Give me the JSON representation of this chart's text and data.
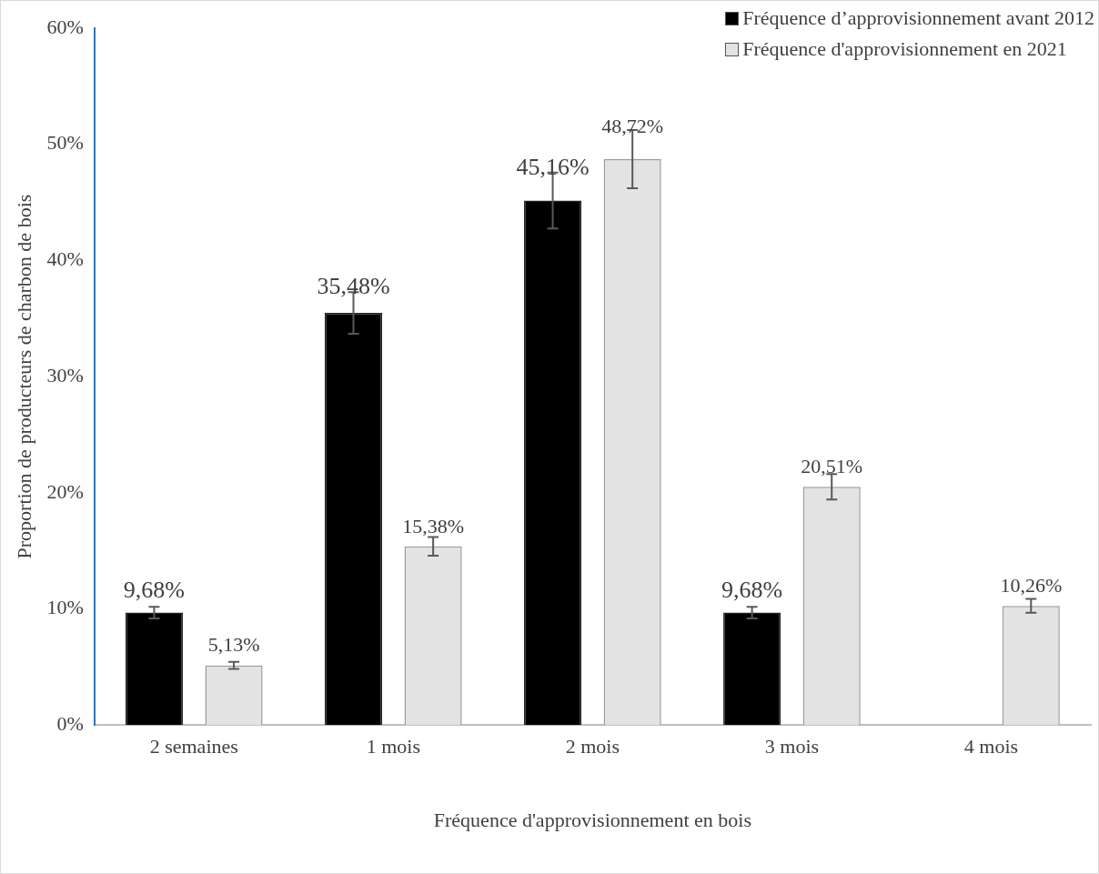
{
  "chart_data": {
    "type": "bar",
    "xlabel": "Fréquence d'approvisionnement en bois",
    "ylabel": "Proportion de producteurs de charbon de bois",
    "categories": [
      "2 semaines",
      "1 mois",
      "2 mois",
      "3 mois",
      "4 mois"
    ],
    "series": [
      {
        "name": "Fréquence d’approvisionnement avant 2012",
        "color": "#000000",
        "values": [
          9.68,
          35.48,
          45.16,
          9.68,
          0
        ],
        "errors": [
          0.5,
          1.8,
          2.4,
          0.5,
          null
        ],
        "value_labels": [
          "9,68%",
          "35,48%",
          "45,16%",
          "9,68%",
          null
        ]
      },
      {
        "name": "Fréquence d'approvisionnement en 2021",
        "color": "#e3e3e3",
        "values": [
          5.13,
          15.38,
          48.72,
          20.51,
          10.26
        ],
        "errors": [
          0.3,
          0.8,
          2.5,
          1.1,
          0.6
        ],
        "value_labels": [
          "5,13%",
          "15,38%",
          "48,72%",
          "20,51%",
          "10,26%"
        ]
      }
    ],
    "ylim": [
      0,
      60
    ],
    "yticks": [
      {
        "value": 0,
        "label": "0%"
      },
      {
        "value": 10,
        "label": "10%"
      },
      {
        "value": 20,
        "label": "20%"
      },
      {
        "value": 30,
        "label": "30%"
      },
      {
        "value": 40,
        "label": "40%"
      },
      {
        "value": 50,
        "label": "50%"
      },
      {
        "value": 60,
        "label": "60%"
      }
    ],
    "grid": false,
    "legend": "top right"
  }
}
